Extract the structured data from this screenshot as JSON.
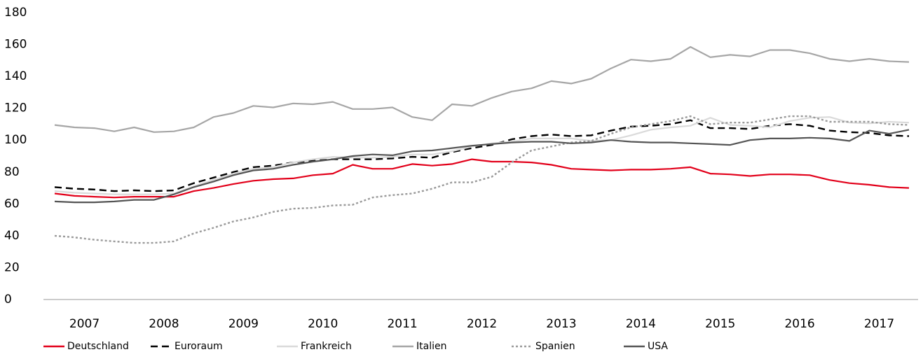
{
  "chart_data": {
    "type": "line",
    "categories": [
      "2007",
      null,
      null,
      null,
      "2008",
      null,
      null,
      null,
      "2009",
      null,
      null,
      null,
      "2010",
      null,
      null,
      null,
      "2011",
      null,
      null,
      null,
      "2012",
      null,
      null,
      null,
      "2013",
      null,
      null,
      null,
      "2014",
      null,
      null,
      null,
      "2015",
      null,
      null,
      null,
      "2016",
      null,
      null,
      null,
      "2017",
      null,
      null,
      null
    ],
    "ylim": [
      0,
      180
    ],
    "yticks": [
      0,
      20,
      40,
      60,
      80,
      100,
      120,
      140,
      160,
      180
    ],
    "grid": false,
    "legend": "bottom",
    "series": [
      {
        "name": "Deutschland",
        "color": "#e2001a",
        "dash": "solid",
        "values": [
          66.5,
          65,
          64.5,
          64,
          64.5,
          64.5,
          64.5,
          68,
          70,
          72.5,
          74.5,
          75.5,
          76,
          78,
          79,
          84.5,
          82,
          82,
          85,
          84,
          85,
          88,
          86.5,
          86.5,
          86,
          84.5,
          82,
          81.5,
          81,
          81.5,
          81.5,
          82,
          83,
          79,
          78.5,
          77.5,
          78.5,
          78.5,
          78,
          75,
          73,
          72,
          70.5,
          70
        ]
      },
      {
        "name": "Euroraum",
        "color": "#000000",
        "dash": "dashed",
        "values": [
          70.5,
          69.5,
          69,
          68,
          68.5,
          68,
          68.5,
          73,
          76.5,
          80,
          83,
          84,
          86,
          87,
          88,
          88,
          88,
          88.5,
          89.5,
          89,
          92.5,
          95,
          97,
          100.5,
          102.5,
          103.5,
          102.5,
          103,
          106,
          108.5,
          109,
          110,
          112.5,
          107.5,
          107.5,
          107,
          109,
          110,
          109,
          106,
          105,
          104.5,
          103,
          102.5
        ]
      },
      {
        "name": "Frankreich",
        "color": "#dadada",
        "dash": "solid",
        "values": [
          68,
          67,
          66.5,
          66,
          66,
          66,
          66.5,
          71,
          75,
          79,
          82,
          83,
          86,
          88,
          89.5,
          89,
          89,
          89.5,
          91,
          91,
          93,
          96,
          98,
          99,
          101,
          101,
          101,
          99.5,
          100,
          103,
          106.5,
          108,
          109,
          114,
          109.5,
          109,
          108,
          112,
          114,
          114.5,
          111,
          110.5,
          111.5,
          111
        ]
      },
      {
        "name": "Italien",
        "color": "#a6a6a6",
        "dash": "solid",
        "values": [
          109.5,
          108,
          107.5,
          105.5,
          108,
          105,
          105.5,
          108,
          114.5,
          117,
          121.5,
          120.5,
          123,
          122.5,
          124,
          119.5,
          119.5,
          120.5,
          114.5,
          112.5,
          122.5,
          121.5,
          126.5,
          130.5,
          132.5,
          137,
          135.5,
          138.5,
          145,
          150.5,
          149.5,
          151,
          158.5,
          152,
          153.5,
          152.5,
          156.5,
          156.5,
          154.5,
          151,
          149.5,
          151,
          149.5,
          149
        ]
      },
      {
        "name": "Spanien",
        "color": "#9a9a9a",
        "dash": "dotted",
        "values": [
          40,
          39,
          37.5,
          36.5,
          35.5,
          35.5,
          36.5,
          41.5,
          45,
          49,
          51.5,
          55,
          57,
          57.5,
          59,
          59.5,
          64,
          65.5,
          66.5,
          69.5,
          73.5,
          73.5,
          77,
          86,
          93.5,
          96,
          98.5,
          99.5,
          104,
          108,
          110,
          112,
          115,
          110,
          111,
          111,
          113,
          115,
          115,
          111.5,
          111.5,
          111.5,
          110,
          109.5
        ]
      },
      {
        "name": "USA",
        "color": "#555555",
        "dash": "solid",
        "values": [
          61.5,
          61,
          61,
          61.5,
          62.5,
          62.5,
          66,
          70.5,
          74,
          78,
          81,
          82,
          84.5,
          86.5,
          88,
          90,
          91,
          90.5,
          93,
          93.5,
          95,
          96.5,
          97.5,
          98.5,
          99,
          99,
          98,
          98.5,
          100,
          99,
          98.5,
          98.5,
          98,
          97.5,
          97,
          100,
          101,
          101,
          101.5,
          101,
          99.5,
          106,
          104,
          106.5
        ]
      }
    ]
  }
}
